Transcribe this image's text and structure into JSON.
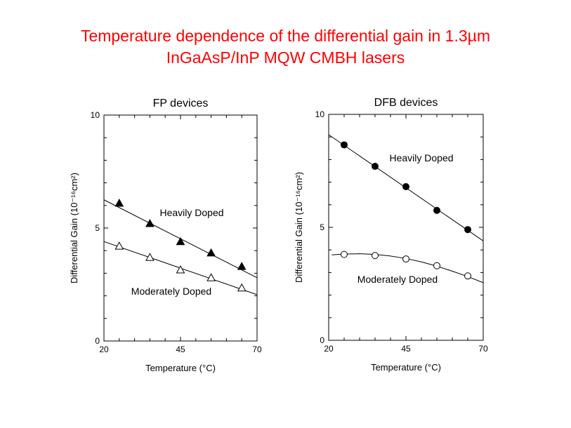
{
  "page": {
    "title_line1": "Temperature dependence of the differential gain in 1.3µm",
    "title_line2": "InGaAsP/InP MQW CMBH lasers",
    "title_color": "#ff0000"
  },
  "chart_data": [
    {
      "type": "scatter",
      "title": "FP devices",
      "xlabel": "Temperature (°C)",
      "ylabel": "Differential Gain (10⁻¹⁶cm²)",
      "xlim": [
        20,
        70
      ],
      "ylim": [
        0,
        10
      ],
      "xticks": [
        20,
        45,
        70
      ],
      "yticks": [
        0,
        5,
        10
      ],
      "grid": false,
      "series": [
        {
          "name": "Heavily Doped",
          "marker": "filled-triangle",
          "x": [
            25,
            35,
            45,
            55,
            65
          ],
          "y": [
            6.1,
            5.2,
            4.4,
            3.9,
            3.3
          ],
          "fit": {
            "x": [
              20,
              70
            ],
            "y": [
              6.25,
              2.8
            ]
          }
        },
        {
          "name": "Moderately Doped",
          "marker": "open-triangle",
          "x": [
            25,
            35,
            45,
            55,
            65
          ],
          "y": [
            4.2,
            3.7,
            3.15,
            2.8,
            2.35
          ],
          "fit": {
            "x": [
              20,
              70
            ],
            "y": [
              4.4,
              2.05
            ]
          }
        }
      ]
    },
    {
      "type": "scatter",
      "title": "DFB devices",
      "xlabel": "Temperature (°C)",
      "ylabel": "Differential Gain (10⁻¹⁶cm²)",
      "xlim": [
        20,
        70
      ],
      "ylim": [
        0,
        10
      ],
      "xticks": [
        20,
        45,
        70
      ],
      "yticks": [
        0,
        5,
        10
      ],
      "grid": false,
      "series": [
        {
          "name": "Heavily Doped",
          "marker": "filled-circle",
          "x": [
            25,
            35,
            45,
            55,
            65
          ],
          "y": [
            8.65,
            7.7,
            6.8,
            5.75,
            4.9
          ],
          "fit": {
            "x": [
              20,
              70
            ],
            "y": [
              9.1,
              4.4
            ]
          }
        },
        {
          "name": "Moderately Doped",
          "marker": "open-circle",
          "x": [
            25,
            35,
            45,
            55,
            65
          ],
          "y": [
            3.8,
            3.75,
            3.6,
            3.3,
            2.85
          ],
          "fit": {
            "x": [
              21,
              25,
              30,
              35,
              40,
              45,
              50,
              55,
              60,
              65,
              70
            ],
            "y": [
              3.78,
              3.82,
              3.83,
              3.8,
              3.73,
              3.62,
              3.47,
              3.28,
              3.06,
              2.82,
              2.55
            ]
          }
        }
      ]
    }
  ]
}
